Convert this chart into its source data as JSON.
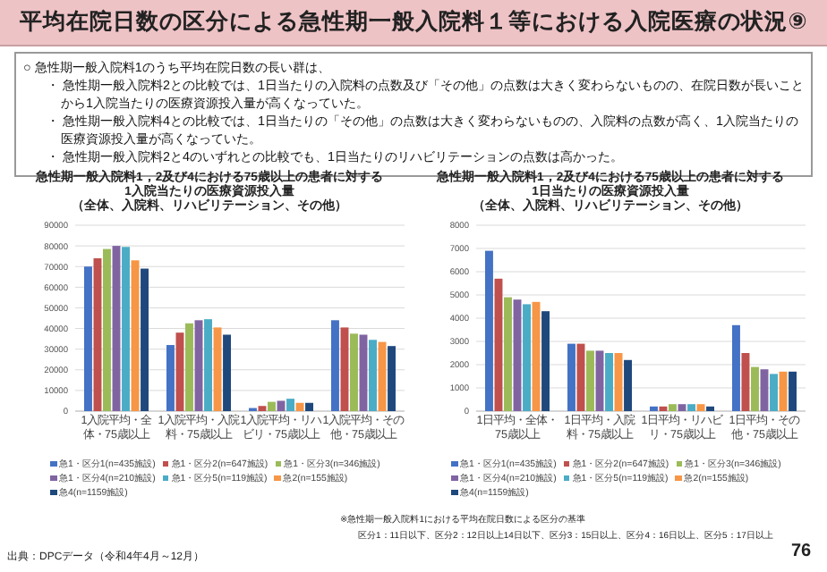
{
  "chart_data": [
    {
      "type": "other",
      "title": "平均在院日数の区分による急性期一般入院料１等における入院医療の状況⑨",
      "annotations": [
        "○ 急性期一般入院料1のうち平均在院日数の長い群は、",
        "・ 急性期一般入院料2との比較では、1日当たりの入院料の点数及び「その他」の点数は大きく変わらないものの、在院日数が長いことから1入院当たりの医療資源投入量が高くなっていた。",
        "・ 急性期一般入院料4との比較では、1日当たりの「その他」の点数は大きく変わらないものの、入院料の点数が高く、1入院当たりの医療資源投入量が高くなっていた。",
        "・ 急性期一般入院料2と4のいずれとの比較でも、1日当たりのリハビリテーションの点数は高かった。"
      ]
    },
    {
      "type": "bar",
      "title": "急性期一般入院料1，2及び4における75歳以上の患者に対する\n1入院当たりの医療資源投入量",
      "subtitle": "（全体、入院料、リハビリテーション、その他）",
      "categories": [
        "1入院平均・全体・75歳以上",
        "1入院平均・入院料・75歳以上",
        "1入院平均・リハビリ・75歳以上",
        "1入院平均・その他・75歳以上"
      ],
      "series": [
        {
          "name": "急1・区分1(n=435施設)",
          "color": "#4472c4",
          "values": [
            70000,
            32000,
            1500,
            44000
          ]
        },
        {
          "name": "急1・区分2(n=647施設)",
          "color": "#c0504d",
          "values": [
            74000,
            38000,
            2500,
            40500
          ]
        },
        {
          "name": "急1・区分3(n=346施設)",
          "color": "#9bbb59",
          "values": [
            78500,
            42500,
            4500,
            37500
          ]
        },
        {
          "name": "急1・区分4(n=210施設)",
          "color": "#8064a2",
          "values": [
            80000,
            44000,
            5000,
            37000
          ]
        },
        {
          "name": "急1・区分5(n=119施設)",
          "color": "#4bacc6",
          "values": [
            79500,
            44500,
            6000,
            34500
          ]
        },
        {
          "name": "急2(n=155施設)",
          "color": "#f79646",
          "values": [
            73000,
            40500,
            4000,
            33500
          ]
        },
        {
          "name": "急4(n=1159施設)",
          "color": "#1f497d",
          "values": [
            69000,
            37000,
            4000,
            31500
          ]
        }
      ],
      "ylim": [
        0,
        90000
      ],
      "yticks": [
        0,
        10000,
        20000,
        30000,
        40000,
        50000,
        60000,
        70000,
        80000,
        90000
      ],
      "grid": "y",
      "legend": "bottom"
    },
    {
      "type": "bar",
      "title": "急性期一般入院料1，2及び4における75歳以上の患者に対する\n1日当たりの医療資源投入量",
      "subtitle": "（全体、入院料、リハビリテーション、その他）",
      "categories": [
        "1日平均・全体・75歳以上",
        "1日平均・入院料・75歳以上",
        "1日平均・リハビリ・75歳以上",
        "1日平均・その他・75歳以上"
      ],
      "series": [
        {
          "name": "急1・区分1(n=435施設)",
          "color": "#4472c4",
          "values": [
            6900,
            2900,
            200,
            3700
          ]
        },
        {
          "name": "急1・区分2(n=647施設)",
          "color": "#c0504d",
          "values": [
            5700,
            2900,
            200,
            2500
          ]
        },
        {
          "name": "急1・区分3(n=346施設)",
          "color": "#9bbb59",
          "values": [
            4900,
            2600,
            300,
            1900
          ]
        },
        {
          "name": "急1・区分4(n=210施設)",
          "color": "#8064a2",
          "values": [
            4800,
            2600,
            300,
            1800
          ]
        },
        {
          "name": "急1・区分5(n=119施設)",
          "color": "#4bacc6",
          "values": [
            4600,
            2500,
            300,
            1600
          ]
        },
        {
          "name": "急2(n=155施設)",
          "color": "#f79646",
          "values": [
            4700,
            2500,
            300,
            1700
          ]
        },
        {
          "name": "急4(n=1159施設)",
          "color": "#1f497d",
          "values": [
            4300,
            2200,
            200,
            1700
          ]
        }
      ],
      "ylim": [
        0,
        8000
      ],
      "yticks": [
        0,
        1000,
        2000,
        3000,
        4000,
        5000,
        6000,
        7000,
        8000
      ],
      "grid": "y",
      "legend": "bottom"
    },
    {
      "type": "other",
      "annotations": [
        "※急性期一般入院料1における平均在院日数による区分の基準",
        "区分1：11日以下、区分2：12日以上14日以下、区分3：15日以上、区分4：16日以上、区分5：17日以上",
        "出典：DPCデータ（令和4年4月～12月）",
        "76"
      ]
    }
  ]
}
